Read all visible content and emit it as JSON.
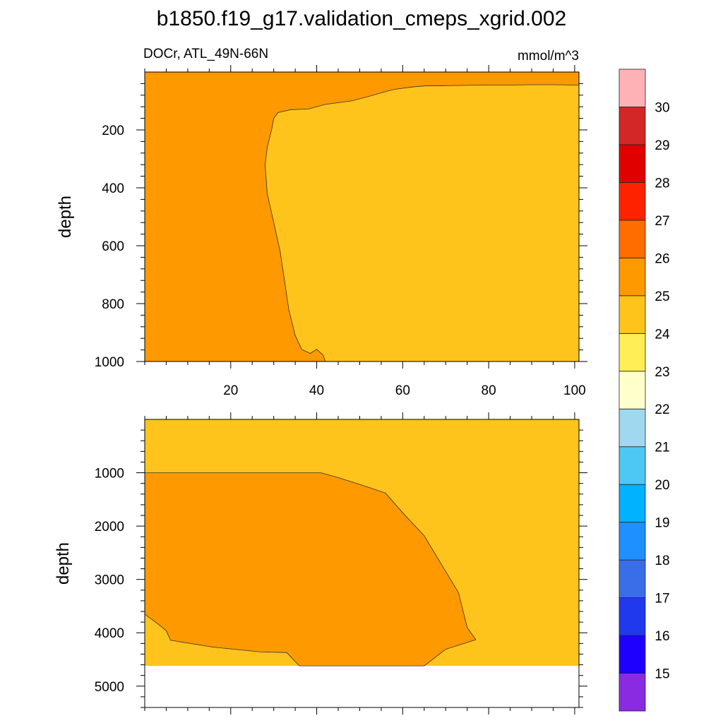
{
  "chart_data": {
    "type": "contour",
    "title": "b1850.f19_g17.validation_cmeps_xgrid.002",
    "subtitle_left": "DOCr, ATL_49N-66N",
    "units": "mmol/m^3",
    "x_range": [
      0,
      101
    ],
    "x_ticks": [
      "20",
      "40",
      "60",
      "80",
      "100"
    ],
    "ylabel": "depth",
    "panels": [
      {
        "name": "upper",
        "ylim": [
          0,
          1000
        ],
        "y_ticks": [
          "200",
          "400",
          "600",
          "800",
          "1000"
        ],
        "background_color": "#FF9900",
        "regions": [
          {
            "level": "24-25",
            "color": "#FFC41C",
            "outline": [
              [
                101,
                45
              ],
              [
                95,
                44
              ],
              [
                90,
                44
              ],
              [
                85,
                45
              ],
              [
                80,
                45
              ],
              [
                75,
                46
              ],
              [
                70,
                47
              ],
              [
                65,
                48
              ],
              [
                62,
                52
              ],
              [
                58,
                60
              ],
              [
                55,
                72
              ],
              [
                52,
                85
              ],
              [
                48,
                100
              ],
              [
                42,
                112
              ],
              [
                38,
                128
              ],
              [
                34,
                130
              ],
              [
                31,
                140
              ],
              [
                30,
                160
              ],
              [
                29.5,
                200
              ],
              [
                28.5,
                260
              ],
              [
                28,
                320
              ],
              [
                28.5,
                420
              ],
              [
                30,
                520
              ],
              [
                31.5,
                620
              ],
              [
                32.5,
                720
              ],
              [
                33.5,
                820
              ],
              [
                35,
                910
              ],
              [
                36.5,
                958
              ],
              [
                38.5,
                972
              ],
              [
                40,
                958
              ],
              [
                41.5,
                978
              ],
              [
                42,
                1000
              ],
              [
                101,
                1000
              ]
            ]
          }
        ]
      },
      {
        "name": "lower",
        "ylim": [
          0,
          5400
        ],
        "y_ticks": [
          "1000",
          "2000",
          "3000",
          "4000",
          "5000"
        ],
        "data_bottom": 4620,
        "background_color": "#FFC41C",
        "regions": [
          {
            "level": "25-26",
            "color": "#FF9900",
            "outline": [
              [
                0,
                1000
              ],
              [
                41,
                1000
              ],
              [
                45,
                1090
              ],
              [
                52,
                1270
              ],
              [
                56,
                1380
              ],
              [
                60,
                1750
              ],
              [
                65,
                2180
              ],
              [
                70,
                2850
              ],
              [
                73,
                3250
              ],
              [
                75,
                3900
              ],
              [
                77,
                4130
              ],
              [
                70,
                4310
              ],
              [
                65,
                4620
              ],
              [
                36,
                4620
              ],
              [
                33,
                4370
              ],
              [
                27,
                4360
              ],
              [
                16,
                4270
              ],
              [
                6,
                4140
              ],
              [
                5,
                3960
              ],
              [
                3,
                3830
              ],
              [
                0,
                3650
              ]
            ]
          }
        ]
      }
    ],
    "colorbar": {
      "levels": [
        "15",
        "16",
        "17",
        "18",
        "19",
        "20",
        "21",
        "22",
        "23",
        "24",
        "25",
        "26",
        "27",
        "28",
        "29",
        "30"
      ],
      "colors": [
        "#8A2BE2",
        "#1E00FF",
        "#2139EC",
        "#3A6EE8",
        "#1E90FF",
        "#00B2FF",
        "#4DC8F5",
        "#A0D8EF",
        "#FFFFCC",
        "#FFEE55",
        "#FFC41C",
        "#FF9900",
        "#FF6D00",
        "#FF2200",
        "#E00000",
        "#D32626",
        "#FFB2B6"
      ]
    }
  }
}
